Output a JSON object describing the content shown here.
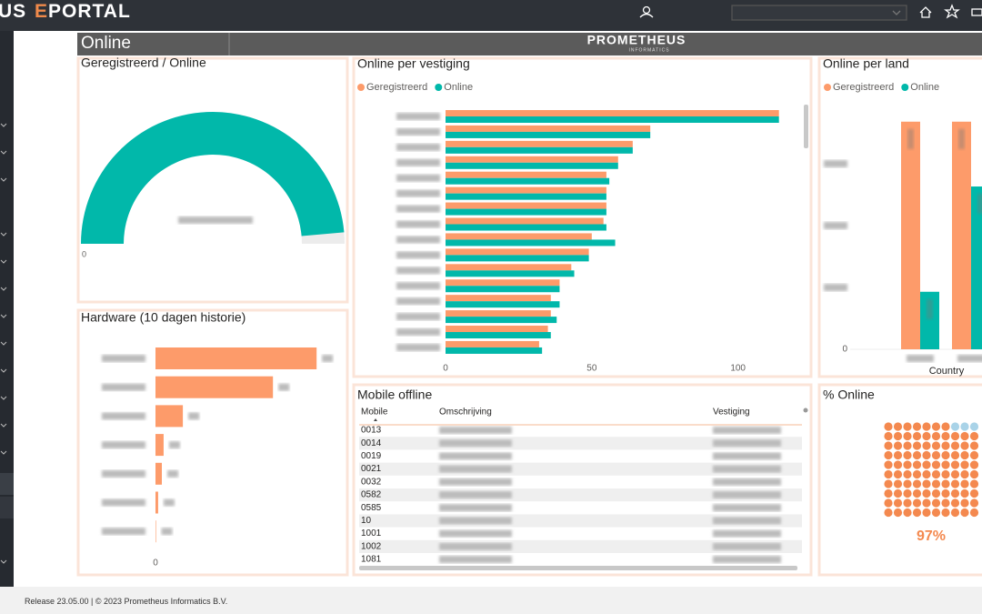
{
  "app": {
    "brand_left": "US",
    "brand": "EPORTAL"
  },
  "page_title": "Online",
  "logo": {
    "name": "PROMETHEUS",
    "sub": "INFORMATICS"
  },
  "chart_data": [
    {
      "type": "gauge",
      "title": "Geregistreerd / Online",
      "min": 0,
      "max": 1800,
      "value": 1750,
      "color": "#01b8aa",
      "track_color": "#ececec"
    },
    {
      "type": "hbar",
      "title": "Online per vestiging",
      "categories": [
        null,
        null,
        null,
        null,
        null,
        null,
        null,
        null,
        null,
        null,
        null,
        null,
        null,
        null,
        null,
        null
      ],
      "series": [
        {
          "name": "Geregistreerd",
          "color": "#fd9b6a",
          "values": [
            114,
            70,
            64,
            59,
            55,
            55,
            55,
            54,
            50,
            49,
            43,
            39,
            36,
            36,
            35,
            32
          ]
        },
        {
          "name": "Online",
          "color": "#01b8aa",
          "values": [
            114,
            70,
            64,
            59,
            56,
            55,
            55,
            55,
            58,
            49,
            44,
            39,
            39,
            38,
            36,
            33
          ]
        }
      ],
      "xlim": [
        0,
        120
      ],
      "xticks": [
        0,
        50,
        100
      ],
      "legend": "top-left"
    },
    {
      "type": "bar",
      "title": "Online per land",
      "x_label": "Country",
      "categories": [
        null,
        null
      ],
      "series": [
        {
          "name": "Geregistreerd",
          "color": "#fd9b6a",
          "values": [
            1840,
            1840
          ]
        },
        {
          "name": "Online",
          "color": "#01b8aa",
          "values": [
            465,
            1316
          ]
        }
      ],
      "ylim": [
        0,
        2000
      ],
      "yticks": [
        0
      ],
      "legend": "top-left"
    },
    {
      "type": "hbar",
      "title": "Hardware (10 dagen historie)",
      "categories": [
        null,
        null,
        null,
        null,
        null,
        null,
        null
      ],
      "series": [
        {
          "color": "#fd9b6a",
          "values": [
            912,
            665,
            155,
            46,
            36,
            15,
            3
          ]
        }
      ],
      "xlim": [
        0,
        1050
      ],
      "xticks": [
        0
      ]
    },
    {
      "type": "waffle",
      "title": "% Online",
      "value": 97,
      "value_label": "97%",
      "color": "#f4894f",
      "rest_color": "#a9d3e8"
    }
  ],
  "table": {
    "title": "Mobile offline",
    "columns": [
      "Mobile",
      "Omschrijving",
      "Vestiging"
    ],
    "rows": [
      "0013",
      "0014",
      "0019",
      "0021",
      "0032",
      "0582",
      "0585",
      "10",
      "1001",
      "1002",
      "1081"
    ]
  },
  "footer": "Release 23.05.00 | © 2023 Prometheus Informatics B.V."
}
